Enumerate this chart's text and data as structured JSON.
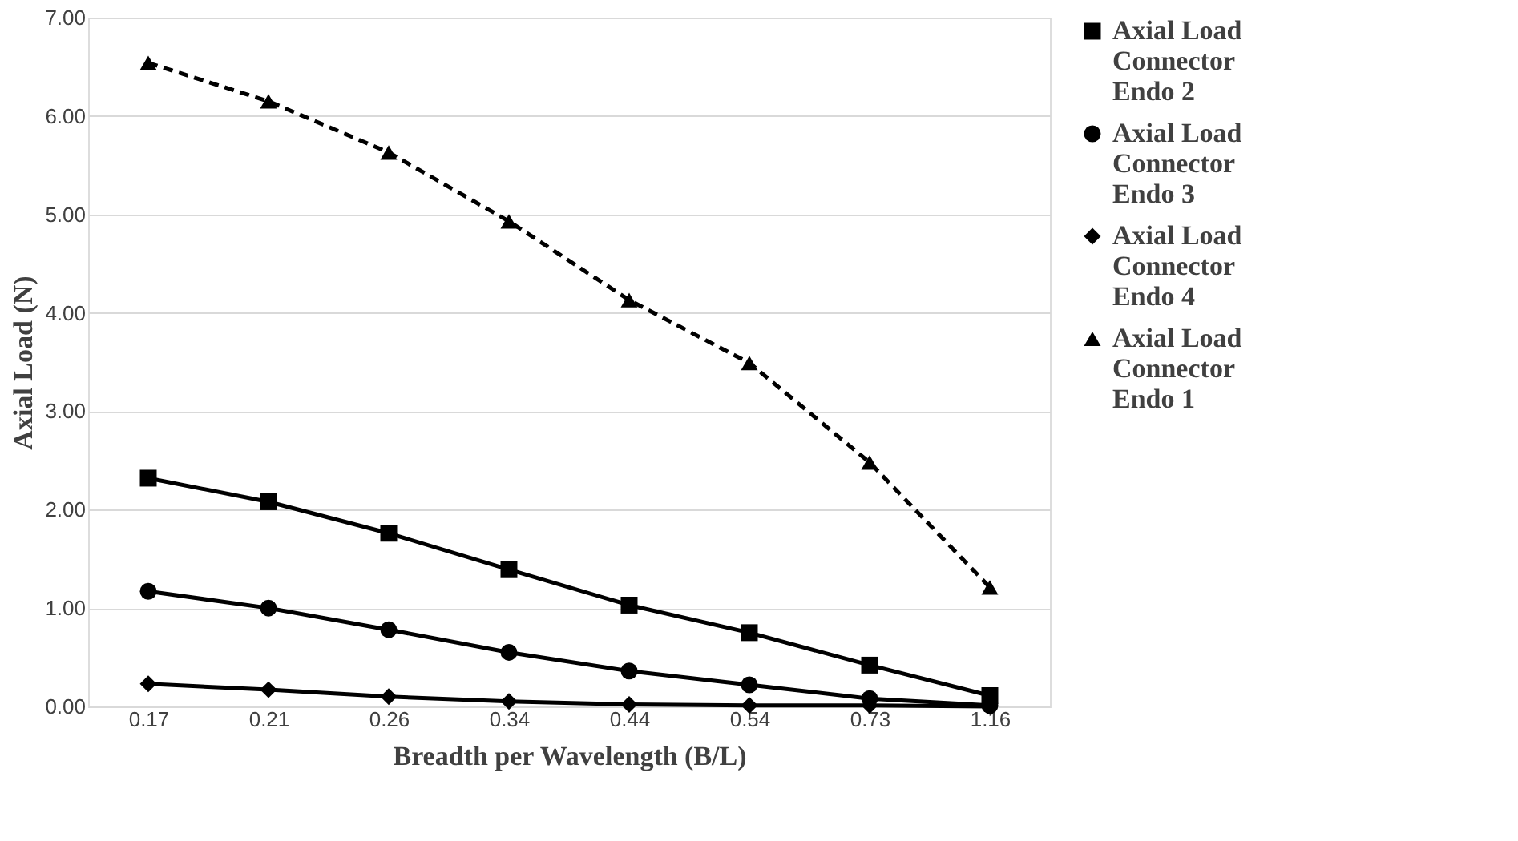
{
  "chart_data": {
    "type": "line",
    "xlabel": "Breadth per Wavelength (B/L)",
    "ylabel": "Axial Load (N)",
    "categories": [
      "0.17",
      "0.21",
      "0.26",
      "0.34",
      "0.44",
      "0.54",
      "0.73",
      "1.16"
    ],
    "series": [
      {
        "name": "Axial Load Connector Endo 2",
        "color": "#000000",
        "marker": "square",
        "line_style": "solid",
        "values": [
          2.32,
          2.08,
          1.76,
          1.39,
          1.03,
          0.75,
          0.42,
          0.11
        ]
      },
      {
        "name": "Axial Load Connector Endo 3",
        "color": "#000000",
        "marker": "circle",
        "line_style": "solid",
        "values": [
          1.17,
          1.0,
          0.78,
          0.55,
          0.36,
          0.22,
          0.08,
          0.01
        ]
      },
      {
        "name": "Axial Load Connector Endo 4",
        "color": "#000000",
        "marker": "diamond",
        "line_style": "solid",
        "values": [
          0.23,
          0.17,
          0.1,
          0.05,
          0.02,
          0.01,
          0.01,
          0.0
        ]
      },
      {
        "name": "Axial Load Connector Endo 1",
        "color": "#000000",
        "marker": "triangle",
        "line_style": "dashed",
        "values": [
          6.54,
          6.15,
          5.63,
          4.93,
          4.13,
          3.49,
          2.48,
          1.21
        ]
      }
    ],
    "ylim": [
      0,
      7
    ],
    "yticks": [
      {
        "value": 0,
        "label": "0.00"
      },
      {
        "value": 1,
        "label": "1.00"
      },
      {
        "value": 2,
        "label": "2.00"
      },
      {
        "value": 3,
        "label": "3.00"
      },
      {
        "value": 4,
        "label": "4.00"
      },
      {
        "value": 5,
        "label": "5.00"
      },
      {
        "value": 6,
        "label": "6.00"
      },
      {
        "value": 7,
        "label": "7.00"
      }
    ],
    "grid": "y",
    "legend": "right"
  }
}
